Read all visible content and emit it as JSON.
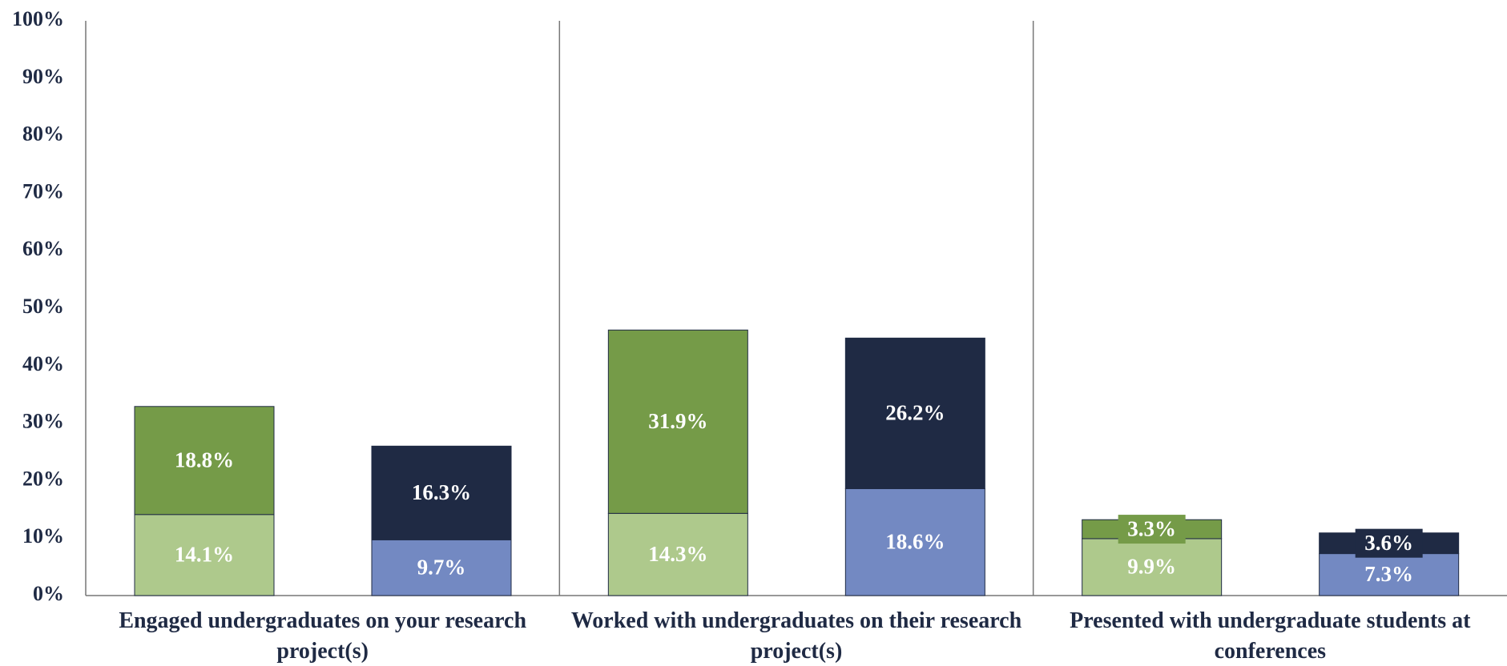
{
  "chart_data": {
    "type": "stacked-bar-pairs",
    "categories": [
      "Engaged undergraduates on your research project(s)",
      "Worked with undergraduates on their research project(s)",
      "Presented with undergraduate students at conferences"
    ],
    "stacks": [
      {
        "series": [
          {
            "color": "#aec98c",
            "values": [
              14.1,
              14.3,
              9.9
            ],
            "value_labels": [
              "14.1%",
              "14.3%",
              "9.9%"
            ]
          },
          {
            "color": "#759b48",
            "values": [
              18.8,
              31.9,
              3.3
            ],
            "value_labels": [
              "18.8%",
              "31.9%",
              "3.3%"
            ]
          }
        ]
      },
      {
        "series": [
          {
            "color": "#7389c2",
            "values": [
              9.7,
              18.6,
              7.3
            ],
            "value_labels": [
              "9.7%",
              "18.6%",
              "7.3%"
            ]
          },
          {
            "color": "#1f2a44",
            "values": [
              16.3,
              26.2,
              3.6
            ],
            "value_labels": [
              "16.3%",
              "26.2%",
              "3.6%"
            ]
          }
        ]
      }
    ],
    "ylim": [
      0,
      100
    ],
    "yticks": [
      {
        "value": 0,
        "label": "0%"
      },
      {
        "value": 10,
        "label": "10%"
      },
      {
        "value": 20,
        "label": "20%"
      },
      {
        "value": 30,
        "label": "30%"
      },
      {
        "value": 40,
        "label": "40%"
      },
      {
        "value": 50,
        "label": "50%"
      },
      {
        "value": 60,
        "label": "60%"
      },
      {
        "value": 70,
        "label": "70%"
      },
      {
        "value": 80,
        "label": "80%"
      },
      {
        "value": 90,
        "label": "90%"
      },
      {
        "value": 100,
        "label": "100%"
      }
    ]
  }
}
